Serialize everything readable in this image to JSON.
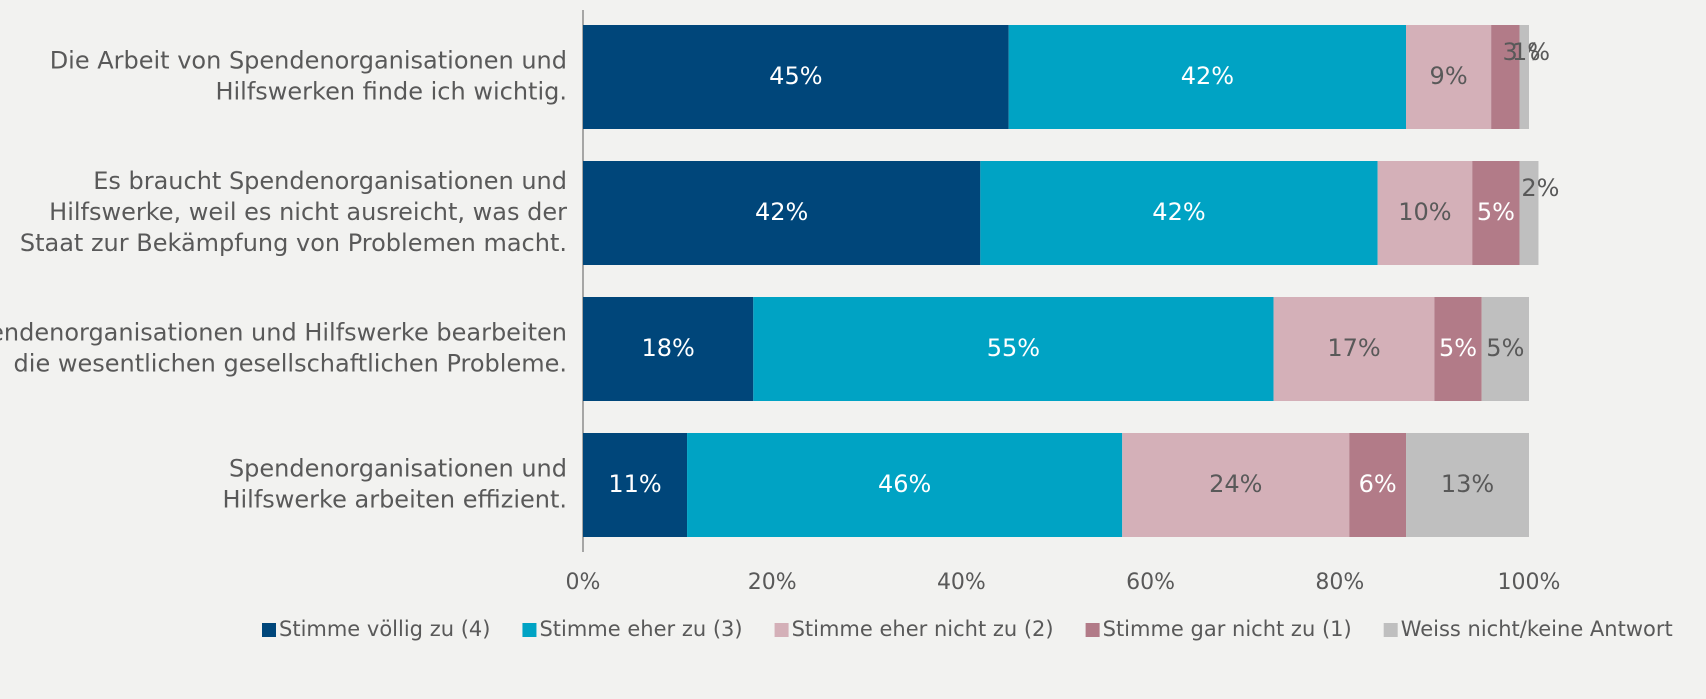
{
  "chart_data": {
    "type": "stacked-barh",
    "categories": [
      "Die Arbeit von Spendenorganisationen und\nHilfswerken finde ich wichtig.",
      "Es braucht Spendenorganisationen und\nHilfswerke, weil es nicht ausreicht, was der\nStaat zur Bekämpfung von Problemen macht.",
      "Spendenorganisationen und Hilfswerke bearbeiten\ndie wesentlichen gesellschaftlichen Probleme.",
      "Spendenorganisationen und\nHilfswerke arbeiten effizient."
    ],
    "series": [
      {
        "name": "Stimme völlig zu (4)",
        "color": "#00467a",
        "values": [
          45,
          42,
          18,
          11
        ],
        "value_labels": [
          "45%",
          "42%",
          "18%",
          "11%"
        ]
      },
      {
        "name": "Stimme eher zu (3)",
        "color": "#00a3c4",
        "values": [
          42,
          42,
          55,
          46
        ],
        "value_labels": [
          "42%",
          "42%",
          "55%",
          "46%"
        ]
      },
      {
        "name": "Stimme eher nicht zu (2)",
        "color": "#d4b0b8",
        "values": [
          9,
          10,
          17,
          24
        ],
        "value_labels": [
          "9%",
          "10%",
          "17%",
          "24%"
        ]
      },
      {
        "name": "Stimme gar nicht zu (1)",
        "color": "#b27b88",
        "values": [
          3,
          5,
          5,
          6
        ],
        "value_labels": [
          "3%",
          "5%",
          "5%",
          "6%"
        ]
      },
      {
        "name": "Weiss nicht/keine Antwort",
        "color": "#bfbfbf",
        "values": [
          1,
          2,
          5,
          13
        ],
        "value_labels": [
          "1%",
          "2%",
          "5%",
          "13%"
        ]
      }
    ],
    "xlim": [
      0,
      100
    ],
    "xticks": [
      {
        "value": 0,
        "label": "0%"
      },
      {
        "value": 20,
        "label": "20%"
      },
      {
        "value": 40,
        "label": "40%"
      },
      {
        "value": 60,
        "label": "60%"
      },
      {
        "value": 80,
        "label": "80%"
      },
      {
        "value": 100,
        "label": "100%"
      }
    ],
    "grid": false,
    "legend": "bottom"
  }
}
